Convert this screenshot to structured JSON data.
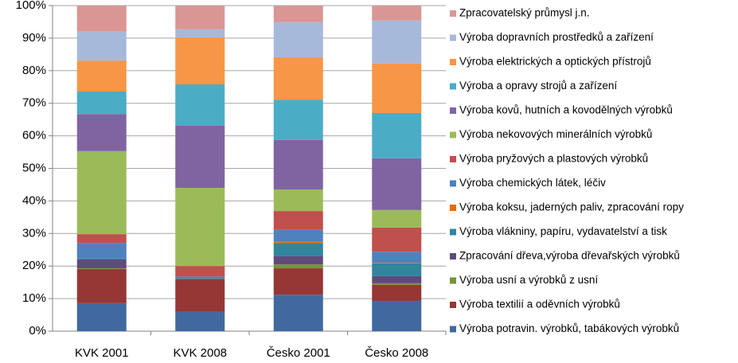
{
  "chart_data": {
    "type": "stacked_bar_100",
    "categories": [
      "KVK 2001",
      "KVK 2008",
      "Česko 2001",
      "Česko 2008"
    ],
    "ylim": [
      0,
      100
    ],
    "yticks": [
      {
        "value": 0,
        "label": "0%"
      },
      {
        "value": 10,
        "label": "10%"
      },
      {
        "value": 20,
        "label": "20%"
      },
      {
        "value": 30,
        "label": "30%"
      },
      {
        "value": 40,
        "label": "40%"
      },
      {
        "value": 50,
        "label": "50%"
      },
      {
        "value": 60,
        "label": "60%"
      },
      {
        "value": 70,
        "label": "70%"
      },
      {
        "value": 80,
        "label": "80%"
      },
      {
        "value": 90,
        "label": "90%"
      },
      {
        "value": 100,
        "label": "100%"
      }
    ],
    "grid": true,
    "legend": "right",
    "series": [
      {
        "name": "Výroba potravin. výrobků, tabákových výrobků",
        "color": "#4169A0",
        "values": [
          8.6,
          5.9,
          11.2,
          9.3
        ]
      },
      {
        "name": "Výroba textilií a oděvních výrobků",
        "color": "#953735",
        "values": [
          10.5,
          10.0,
          8.1,
          4.9
        ]
      },
      {
        "name": "Výroba usní a výrobků z usní",
        "color": "#77933C",
        "values": [
          0.2,
          0.1,
          1.2,
          0.5
        ]
      },
      {
        "name": "Zpracování dřeva,výroba dřevařských výrobků",
        "color": "#604A7B",
        "values": [
          2.7,
          0.2,
          2.5,
          2.2
        ]
      },
      {
        "name": "Výroba vlákniny, papíru, vydavatelství a tisk",
        "color": "#31859C",
        "values": [
          0.3,
          0.3,
          4.1,
          3.9
        ]
      },
      {
        "name": "Výroba koksu, jaderných paliv, zpracování ropy",
        "color": "#E46C0A",
        "values": [
          0,
          0,
          0.5,
          0.2
        ]
      },
      {
        "name": "Výroba chemických látek, léčiv",
        "color": "#4F81BD",
        "values": [
          4.8,
          0.3,
          3.5,
          3.4
        ]
      },
      {
        "name": "Výroba pryžových a plastových výrobků",
        "color": "#C0504D",
        "values": [
          2.7,
          3.2,
          5.8,
          7.4
        ]
      },
      {
        "name": "Výroba nekovových minerálních výrobků",
        "color": "#9BBB59",
        "values": [
          25.5,
          24.0,
          6.6,
          5.4
        ]
      },
      {
        "name": "Výroba kovů, hutních a kovodělných výrobků",
        "color": "#8064A2",
        "values": [
          11.4,
          19.1,
          15.2,
          15.9
        ]
      },
      {
        "name": "Výroba a opravy strojů a zařízení",
        "color": "#4BACC6",
        "values": [
          6.9,
          12.7,
          12.4,
          13.9
        ]
      },
      {
        "name": "Výroba elektrických a optických přístrojů",
        "color": "#F79646",
        "values": [
          9.5,
          14.4,
          13.0,
          15.2
        ]
      },
      {
        "name": "Výroba dopravních prostředků a zařízení",
        "color": "#A7B9DA",
        "values": [
          8.9,
          2.5,
          10.8,
          13.2
        ]
      },
      {
        "name": "Zpracovatelský průmysl j.n.",
        "color": "#D99694",
        "values": [
          8.0,
          7.3,
          5.1,
          4.6
        ]
      }
    ]
  }
}
